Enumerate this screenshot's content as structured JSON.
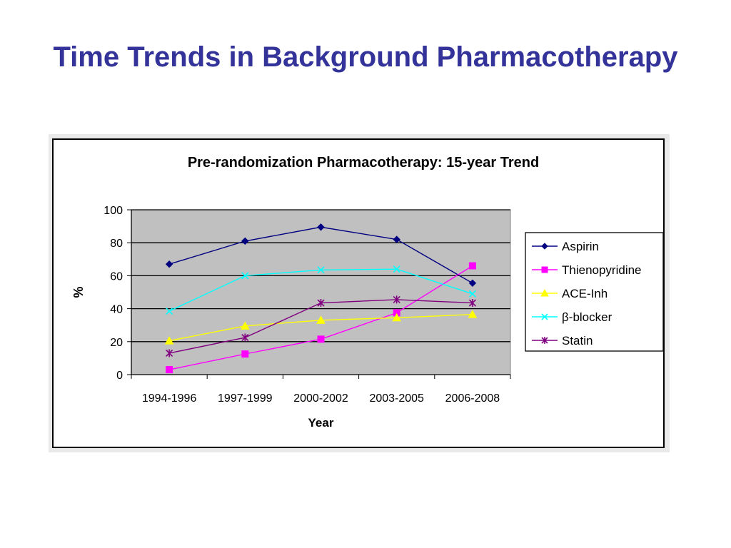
{
  "slide": {
    "title": "Time Trends in Background Pharmacotherapy"
  },
  "chart_data": {
    "type": "line",
    "title": "Pre-randomization Pharmacotherapy: 15-year Trend",
    "xlabel": "Year",
    "ylabel": "%",
    "categories": [
      "1994-1996",
      "1997-1999",
      "2000-2002",
      "2003-2005",
      "2006-2008"
    ],
    "ylim": [
      0,
      100
    ],
    "yticks": [
      0,
      20,
      40,
      60,
      80,
      100
    ],
    "grid": true,
    "legend_position": "right",
    "plot_background": "#c0c0c0",
    "series": [
      {
        "name": "Aspirin",
        "color": "#000080",
        "marker": "diamond",
        "values": [
          67,
          81,
          89.5,
          82,
          55.5
        ]
      },
      {
        "name": "Thienopyridine",
        "color": "#ff00ff",
        "marker": "square",
        "values": [
          3,
          12.5,
          21.5,
          37.5,
          66
        ]
      },
      {
        "name": "ACE-Inh",
        "color": "#ffff00",
        "marker": "triangle",
        "values": [
          20.5,
          29.5,
          33,
          34.5,
          36.5
        ]
      },
      {
        "name": "β-blocker",
        "color": "#00ffff",
        "marker": "x",
        "values": [
          38.5,
          60,
          63.5,
          64,
          49
        ]
      },
      {
        "name": "Statin",
        "color": "#800080",
        "marker": "star",
        "values": [
          13,
          22.5,
          43.5,
          45.5,
          43.5
        ]
      }
    ]
  }
}
